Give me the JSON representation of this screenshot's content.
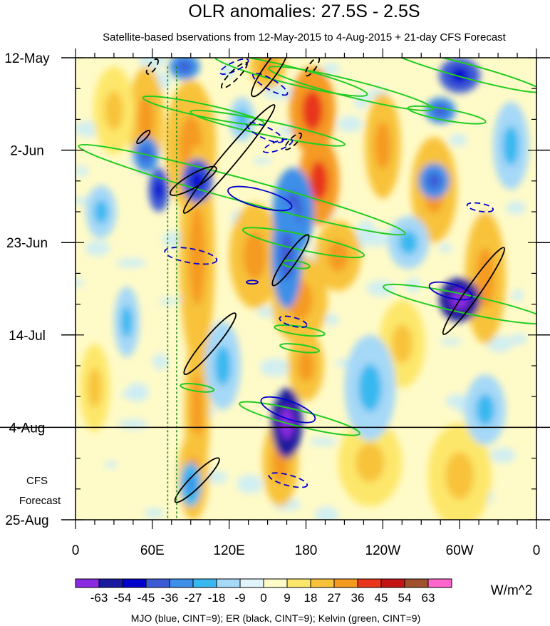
{
  "chart_data": {
    "type": "heatmap",
    "title": "OLR anomalies: 27.5S - 2.5S",
    "subtitle": "Satellite-based bservations from 12-May-2015 to 4-Aug-2015 + 21-day CFS Forecast",
    "y_ticks": [
      {
        "label": "12-May",
        "day": 0
      },
      {
        "label": "2-Jun",
        "day": 21
      },
      {
        "label": "23-Jun",
        "day": 42
      },
      {
        "label": "14-Jul",
        "day": 63
      },
      {
        "label": "4-Aug",
        "day": 84
      },
      {
        "label": "25-Aug",
        "day": 105
      }
    ],
    "ylim_days": [
      0,
      105
    ],
    "x_ticks": [
      {
        "label": "0",
        "lon": 0
      },
      {
        "label": "60E",
        "lon": 60
      },
      {
        "label": "120E",
        "lon": 120
      },
      {
        "label": "180",
        "lon": 180
      },
      {
        "label": "120W",
        "lon": 240
      },
      {
        "label": "60W",
        "lon": 300
      },
      {
        "label": "0",
        "lon": 360
      }
    ],
    "xlim_lon": [
      0,
      360
    ],
    "forecast_start_day": 84,
    "forecast_label_line1": "CFS",
    "forecast_label_line2": "Forecast",
    "colorbar": {
      "levels": [
        -63,
        -54,
        -45,
        -36,
        -27,
        -18,
        -9,
        0,
        9,
        18,
        27,
        36,
        45,
        54,
        63
      ],
      "labels": [
        "-63",
        "-54",
        "-45",
        "-36",
        "-27",
        "-18",
        "-9",
        "0",
        "9",
        "18",
        "27",
        "36",
        "45",
        "54",
        "63"
      ],
      "colors": [
        "#8a2be2",
        "#1a1a9e",
        "#0000cd",
        "#3c5ad6",
        "#3d8fe8",
        "#38b8f0",
        "#a6d8f7",
        "#dff5fb",
        "#fffbc8",
        "#fde76a",
        "#f8c33a",
        "#f59a20",
        "#e8361d",
        "#c41414",
        "#a0522d",
        "#ff66cc"
      ],
      "units": "W/m^2"
    },
    "footer": "MJO (blue, CINT=9); ER (black, CINT=9); Kelvin (green, CINT=9)",
    "lines": {
      "mjo": "#0000cd",
      "er": "#000000",
      "kelvin": "#22cc22"
    },
    "blobs": [
      {
        "lon": 55,
        "day": 14,
        "dlon": 14,
        "dday": 12,
        "v": 22
      },
      {
        "lon": 90,
        "day": 20,
        "dlon": 20,
        "dday": 15,
        "v": 24
      },
      {
        "lon": 95,
        "day": 45,
        "dlon": 14,
        "dday": 25,
        "v": 26
      },
      {
        "lon": 95,
        "day": 80,
        "dlon": 10,
        "dday": 18,
        "v": 25
      },
      {
        "lon": 92,
        "day": 95,
        "dlon": 12,
        "dday": 10,
        "v": 22
      },
      {
        "lon": 150,
        "day": 2,
        "dlon": 14,
        "dday": 5,
        "v": 22
      },
      {
        "lon": 140,
        "day": 45,
        "dlon": 20,
        "dday": 12,
        "v": 20
      },
      {
        "lon": 185,
        "day": 12,
        "dlon": 18,
        "dday": 10,
        "v": 27
      },
      {
        "lon": 190,
        "day": 28,
        "dlon": 16,
        "dday": 10,
        "v": 28
      },
      {
        "lon": 205,
        "day": 45,
        "dlon": 18,
        "dday": 8,
        "v": 20
      },
      {
        "lon": 175,
        "day": 55,
        "dlon": 22,
        "dday": 10,
        "v": 24
      },
      {
        "lon": 180,
        "day": 70,
        "dlon": 14,
        "dday": 8,
        "v": 20
      },
      {
        "lon": 160,
        "day": 92,
        "dlon": 14,
        "dday": 10,
        "v": 22
      },
      {
        "lon": 240,
        "day": 20,
        "dlon": 14,
        "dday": 12,
        "v": 20
      },
      {
        "lon": 280,
        "day": 30,
        "dlon": 18,
        "dday": 12,
        "v": 18
      },
      {
        "lon": 320,
        "day": 50,
        "dlon": 16,
        "dday": 15,
        "v": 18
      },
      {
        "lon": 255,
        "day": 65,
        "dlon": 18,
        "dday": 10,
        "v": 16
      },
      {
        "lon": 30,
        "day": 12,
        "dlon": 16,
        "dday": 10,
        "v": 15
      },
      {
        "lon": 15,
        "day": 75,
        "dlon": 12,
        "dday": 10,
        "v": 14
      },
      {
        "lon": 230,
        "day": 92,
        "dlon": 25,
        "dday": 10,
        "v": 12
      },
      {
        "lon": 300,
        "day": 95,
        "dlon": 25,
        "dday": 12,
        "v": 10
      },
      {
        "lon": 65,
        "day": 30,
        "dlon": 8,
        "dday": 5,
        "v": -45
      },
      {
        "lon": 95,
        "day": 28,
        "dlon": 12,
        "dday": 5,
        "v": -40
      },
      {
        "lon": 55,
        "day": 22,
        "dlon": 10,
        "dday": 4,
        "v": -30
      },
      {
        "lon": 170,
        "day": 35,
        "dlon": 16,
        "dday": 10,
        "v": -30
      },
      {
        "lon": 165,
        "day": 83,
        "dlon": 12,
        "dday": 8,
        "v": -58
      },
      {
        "lon": 165,
        "day": 45,
        "dlon": 12,
        "dday": 12,
        "v": -30
      },
      {
        "lon": 300,
        "day": 55,
        "dlon": 16,
        "dday": 5,
        "v": -55
      },
      {
        "lon": 280,
        "day": 28,
        "dlon": 12,
        "dday": 4,
        "v": -30
      },
      {
        "lon": 300,
        "day": 4,
        "dlon": 16,
        "dday": 4,
        "v": -40
      },
      {
        "lon": 285,
        "day": 12,
        "dlon": 12,
        "dday": 3,
        "v": -30
      },
      {
        "lon": 85,
        "day": 2,
        "dlon": 12,
        "dday": 3,
        "v": -35
      },
      {
        "lon": 20,
        "day": 35,
        "dlon": 12,
        "dday": 6,
        "v": -15
      },
      {
        "lon": 40,
        "day": 60,
        "dlon": 10,
        "dday": 8,
        "v": -15
      },
      {
        "lon": 90,
        "day": 97,
        "dlon": 8,
        "dday": 5,
        "v": -25
      },
      {
        "lon": 115,
        "day": 70,
        "dlon": 14,
        "dday": 10,
        "v": -14
      },
      {
        "lon": 260,
        "day": 42,
        "dlon": 16,
        "dday": 6,
        "v": -18
      },
      {
        "lon": 320,
        "day": 80,
        "dlon": 16,
        "dday": 8,
        "v": -14
      },
      {
        "lon": 230,
        "day": 75,
        "dlon": 20,
        "dday": 12,
        "v": -12
      },
      {
        "lon": 130,
        "day": 14,
        "dlon": 10,
        "dday": 5,
        "v": -15
      },
      {
        "lon": 340,
        "day": 20,
        "dlon": 14,
        "dday": 10,
        "v": -12
      }
    ],
    "kelvin": [
      {
        "lon": 168,
        "day": 4,
        "a": 28,
        "b": 1.2,
        "ang": 14
      },
      {
        "lon": 215,
        "day": 7,
        "a": 30,
        "b": 1.2,
        "ang": 14
      },
      {
        "lon": 305,
        "day": 3,
        "a": 28,
        "b": 1.0,
        "ang": 15
      },
      {
        "lon": 100,
        "day": 12,
        "a": 22,
        "b": 0.9,
        "ang": 12
      },
      {
        "lon": 150,
        "day": 16,
        "a": 28,
        "b": 1.0,
        "ang": 12
      },
      {
        "lon": 290,
        "day": 13,
        "a": 14,
        "b": 0.8,
        "ang": 10
      },
      {
        "lon": 130,
        "day": 30,
        "a": 60,
        "b": 1.6,
        "ang": 15
      },
      {
        "lon": 178,
        "day": 42,
        "a": 22,
        "b": 1.1,
        "ang": 12
      },
      {
        "lon": 305,
        "day": 56,
        "a": 30,
        "b": 1.3,
        "ang": 12
      },
      {
        "lon": 175,
        "day": 62,
        "a": 9,
        "b": 0.6,
        "ang": 8
      },
      {
        "lon": 175,
        "day": 66,
        "a": 7,
        "b": 0.5,
        "ang": 8
      },
      {
        "lon": 95,
        "day": 75,
        "a": 6,
        "b": 0.5,
        "ang": 8
      },
      {
        "lon": 175,
        "day": 82,
        "a": 22,
        "b": 1.1,
        "ang": 14
      },
      {
        "lon": 172,
        "day": 47,
        "a": 5,
        "b": 0.5,
        "ang": 8
      }
    ],
    "mjo": [
      {
        "lon": 152,
        "day": 6,
        "a": 4.5,
        "b": 1.2,
        "ang": -30,
        "dash": true
      },
      {
        "lon": 148,
        "day": 17,
        "a": 4.5,
        "b": 1.3,
        "ang": -25,
        "dash": true
      },
      {
        "lon": 158,
        "day": 20,
        "a": 3.5,
        "b": 1.0,
        "ang": 20,
        "dash": true
      },
      {
        "lon": 144,
        "day": 32,
        "a": 7.5,
        "b": 2.0,
        "ang": -15,
        "dash": false
      },
      {
        "lon": 90,
        "day": 45,
        "a": 6,
        "b": 1.6,
        "ang": -10,
        "dash": true
      },
      {
        "lon": 166,
        "day": 80,
        "a": 6.5,
        "b": 2.0,
        "ang": -20,
        "dash": false
      },
      {
        "lon": 170,
        "day": 60,
        "a": 3.2,
        "b": 1.0,
        "ang": -15,
        "dash": true
      },
      {
        "lon": 166,
        "day": 96,
        "a": 4.5,
        "b": 1.2,
        "ang": -15,
        "dash": true
      },
      {
        "lon": 293,
        "day": 53,
        "a": 5,
        "b": 1.6,
        "ang": -15,
        "dash": false
      },
      {
        "lon": 316,
        "day": 34,
        "a": 3,
        "b": 0.9,
        "ang": -10,
        "dash": true
      },
      {
        "lon": 124,
        "day": 2,
        "a": 3.5,
        "b": 1.0,
        "ang": 25,
        "dash": true
      },
      {
        "lon": 138,
        "day": 51,
        "a": 1.3,
        "b": 0.4,
        "ang": 0,
        "dash": false
      }
    ],
    "er": [
      {
        "lon": 92,
        "day": 28,
        "a": 6,
        "b": 1.5,
        "ang": 30,
        "dash": false
      },
      {
        "lon": 120,
        "day": 23,
        "a": 16,
        "b": 1.7,
        "ang": 50,
        "dash": false
      },
      {
        "lon": 124,
        "day": 4,
        "a": 4,
        "b": 1.0,
        "ang": 45,
        "dash": true
      },
      {
        "lon": 152,
        "day": 3,
        "a": 7,
        "b": 1.6,
        "ang": 55,
        "dash": false
      },
      {
        "lon": 105,
        "day": 65,
        "a": 9,
        "b": 1.5,
        "ang": 50,
        "dash": false
      },
      {
        "lon": 168,
        "day": 46,
        "a": 7,
        "b": 1.3,
        "ang": 55,
        "dash": false
      },
      {
        "lon": 311,
        "day": 53,
        "a": 12,
        "b": 1.5,
        "ang": 55,
        "dash": false
      },
      {
        "lon": 95,
        "day": 96,
        "a": 7,
        "b": 1.4,
        "ang": 45,
        "dash": false
      },
      {
        "lon": 53,
        "day": 18,
        "a": 2.0,
        "b": 0.6,
        "ang": 45,
        "dash": false
      },
      {
        "lon": 170,
        "day": 19,
        "a": 2.5,
        "b": 0.8,
        "ang": 45,
        "dash": true
      },
      {
        "lon": 185,
        "day": 2,
        "a": 2.5,
        "b": 0.8,
        "ang": 55,
        "dash": true
      },
      {
        "lon": 60,
        "day": 2,
        "a": 2.0,
        "b": 0.8,
        "ang": 55,
        "dash": true
      }
    ],
    "reference_lines_lon": [
      72,
      79
    ]
  }
}
